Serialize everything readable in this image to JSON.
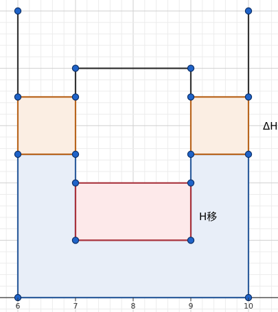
{
  "axis": {
    "x_ticks": [
      "6",
      "7",
      "8",
      "9",
      "10"
    ]
  },
  "labels": {
    "delta_h": "ΔH",
    "h_move": "H移"
  },
  "colors": {
    "grid_minor": "#ececec",
    "grid_major": "#cfcfcf",
    "axis": "#333333",
    "outer_outline": "#333333",
    "blue_fill": "#e8eef8",
    "blue_stroke": "#2e5d9c",
    "orange_fill": "#fbeee3",
    "orange_stroke": "#b8651e",
    "red_fill": "#fde9ea",
    "red_stroke": "#a8323c",
    "point_fill": "#1f63c8",
    "point_stroke": "#0b2e66"
  },
  "chart_data": {
    "type": "diagram",
    "x_range": [
      6,
      10
    ],
    "y_range": [
      0,
      5
    ],
    "polylines": [
      {
        "name": "outer-outline",
        "points": [
          [
            6,
            5
          ],
          [
            6,
            3.5
          ]
        ]
      },
      {
        "name": "outer-outline",
        "points": [
          [
            10,
            5
          ],
          [
            10,
            3.5
          ]
        ]
      },
      {
        "name": "outer-outline",
        "points": [
          [
            7,
            3.5
          ],
          [
            7,
            4
          ],
          [
            9,
            4
          ],
          [
            9,
            3.5
          ]
        ]
      }
    ],
    "regions": [
      {
        "name": "blue-region",
        "points": [
          [
            6,
            0
          ],
          [
            10,
            0
          ],
          [
            10,
            2.5
          ],
          [
            9,
            2.5
          ],
          [
            9,
            1
          ],
          [
            7,
            1
          ],
          [
            7,
            2.5
          ],
          [
            6,
            2.5
          ]
        ],
        "fill": "blue_fill",
        "stroke": "blue_stroke"
      },
      {
        "name": "orange-region-left",
        "points": [
          [
            6,
            2.5
          ],
          [
            7,
            2.5
          ],
          [
            7,
            3.5
          ],
          [
            6,
            3.5
          ]
        ],
        "fill": "orange_fill",
        "stroke": "orange_stroke"
      },
      {
        "name": "orange-region-right",
        "points": [
          [
            9,
            2.5
          ],
          [
            10,
            2.5
          ],
          [
            10,
            3.5
          ],
          [
            9,
            3.5
          ]
        ],
        "fill": "orange_fill",
        "stroke": "orange_stroke"
      },
      {
        "name": "red-region",
        "points": [
          [
            7,
            1
          ],
          [
            9,
            1
          ],
          [
            9,
            2
          ],
          [
            7,
            2
          ]
        ],
        "fill": "red_fill",
        "stroke": "red_stroke"
      }
    ],
    "points": [
      [
        6,
        5
      ],
      [
        10,
        5
      ],
      [
        7,
        4
      ],
      [
        9,
        4
      ],
      [
        6,
        3.5
      ],
      [
        7,
        3.5
      ],
      [
        9,
        3.5
      ],
      [
        10,
        3.5
      ],
      [
        6,
        2.5
      ],
      [
        7,
        2.5
      ],
      [
        9,
        2.5
      ],
      [
        10,
        2.5
      ],
      [
        7,
        2
      ],
      [
        9,
        2
      ],
      [
        7,
        1
      ],
      [
        9,
        1
      ],
      [
        6,
        0
      ],
      [
        10,
        0
      ]
    ]
  }
}
